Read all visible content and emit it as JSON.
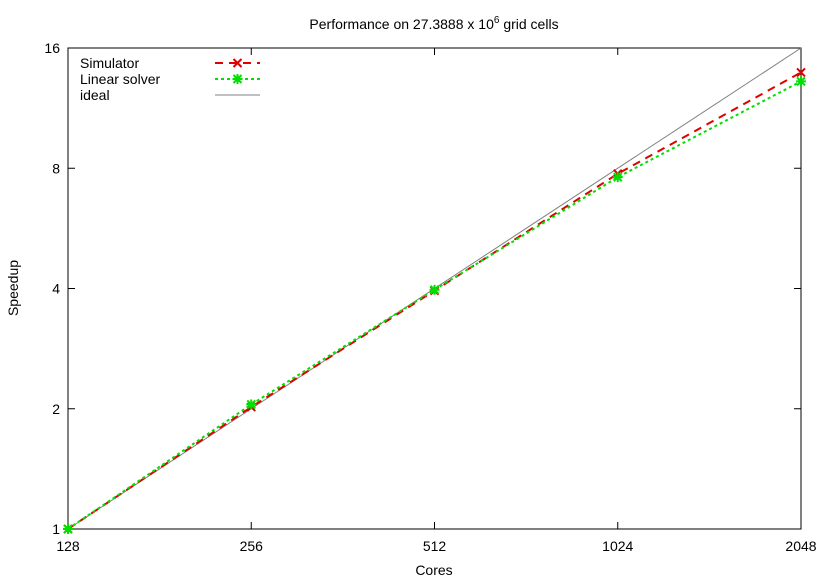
{
  "chart_data": {
    "type": "line",
    "title": "Performance on 27.3888 x 10",
    "title_superscript": "6",
    "title_suffix": " grid cells",
    "xlabel": "Cores",
    "ylabel": "Speedup",
    "x_scale": "log2",
    "y_scale": "log2",
    "xlim": [
      128,
      2048
    ],
    "ylim": [
      1,
      16
    ],
    "x_ticks": [
      128,
      256,
      512,
      1024,
      2048
    ],
    "x_tick_labels": [
      "128",
      "256",
      "512",
      "1024",
      "2048"
    ],
    "y_ticks": [
      1,
      2,
      4,
      8,
      16
    ],
    "y_tick_labels": [
      "1",
      "2",
      "4",
      "8",
      "16"
    ],
    "grid": false,
    "legend_position": "top-left",
    "series": [
      {
        "name": "Simulator",
        "color": "#e00000",
        "line_style": "dashed",
        "marker": "x",
        "x": [
          128,
          256,
          512,
          1024,
          2048
        ],
        "y": [
          1.0,
          2.02,
          3.95,
          7.75,
          13.9
        ]
      },
      {
        "name": "Linear solver",
        "color": "#00e000",
        "line_style": "dotted",
        "marker": "star",
        "x": [
          128,
          256,
          512,
          1024,
          2048
        ],
        "y": [
          1.0,
          2.05,
          3.97,
          7.6,
          13.2
        ]
      },
      {
        "name": "ideal",
        "color": "#808080",
        "line_style": "solid",
        "marker": "none",
        "x": [
          128,
          2048
        ],
        "y": [
          1,
          16
        ]
      }
    ]
  }
}
